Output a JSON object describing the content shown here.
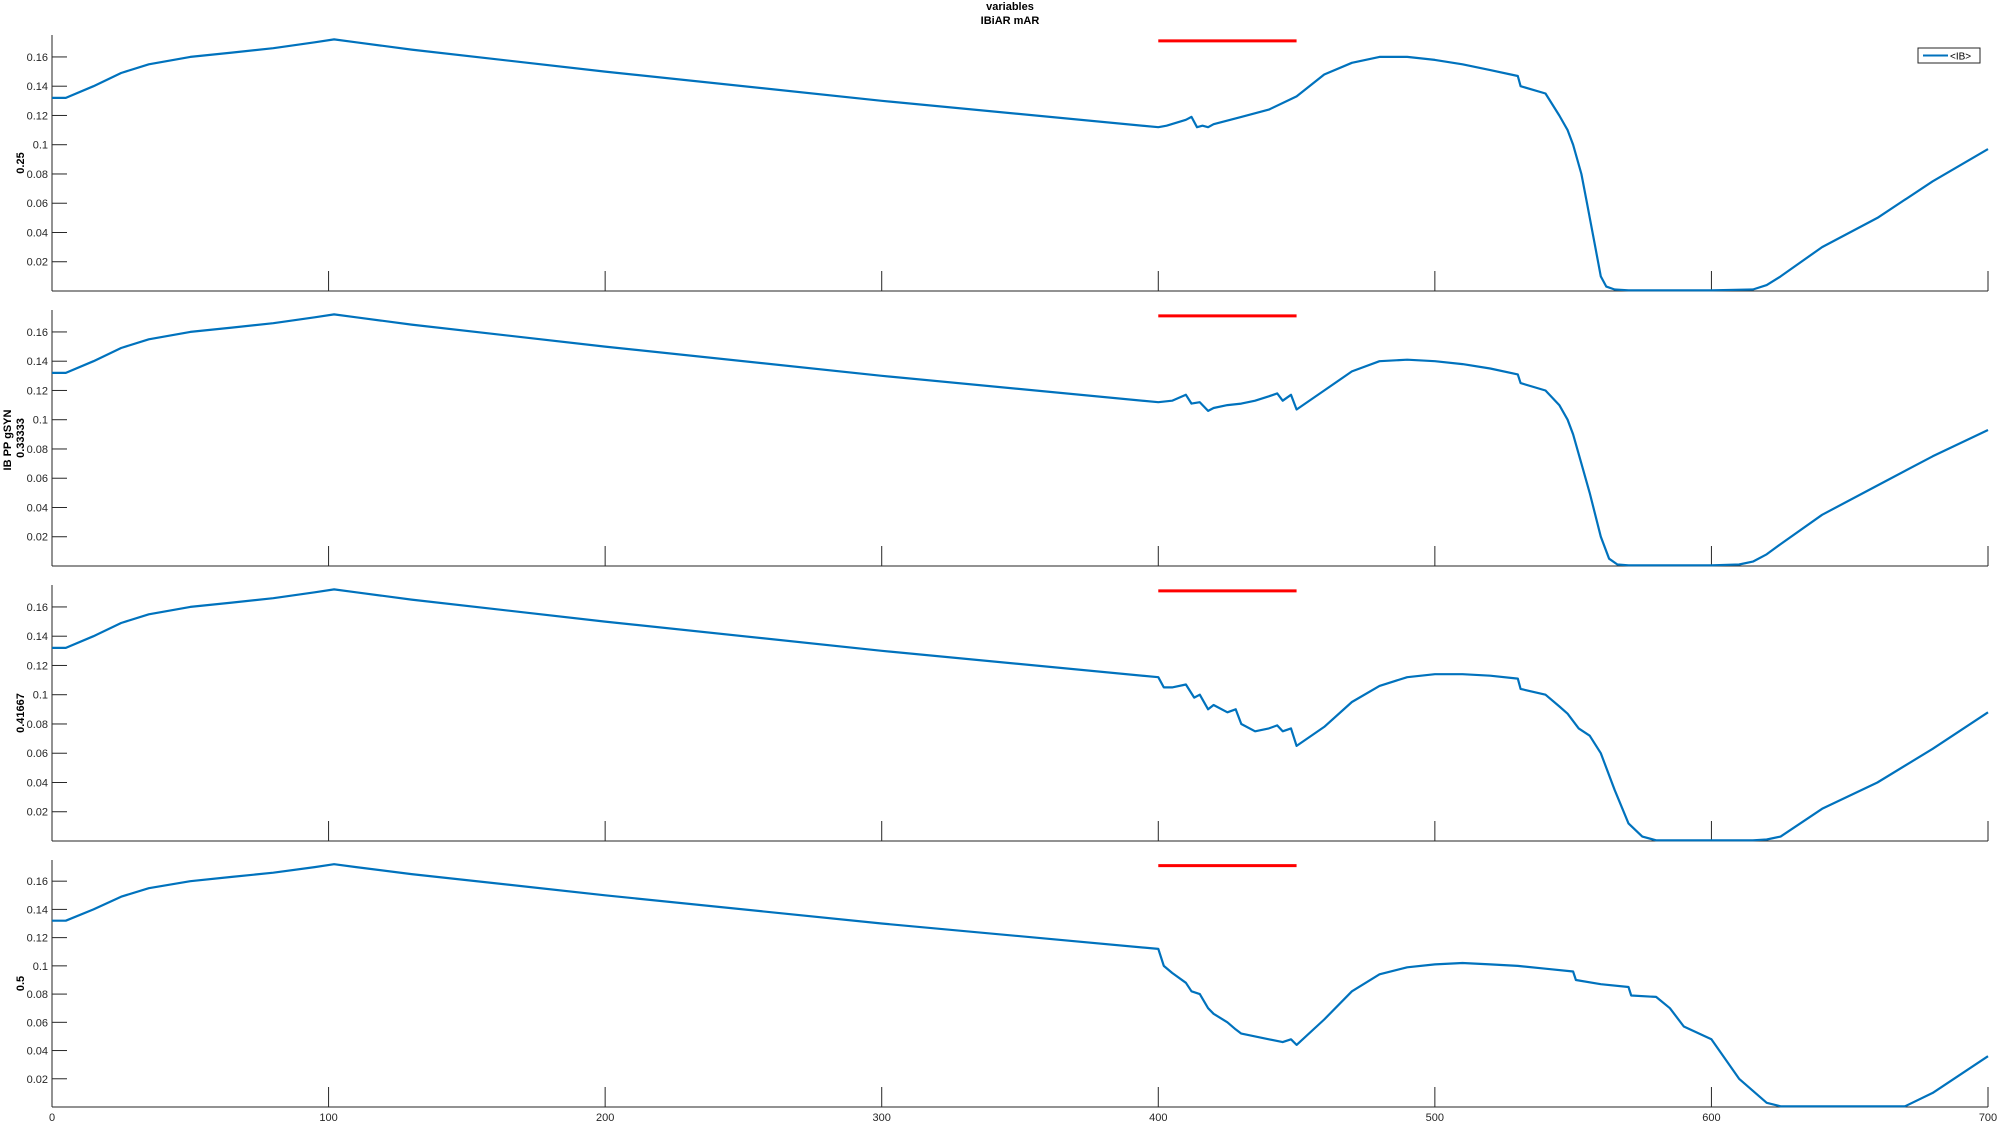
{
  "figure": {
    "title_line1": "variables",
    "title_line2": "IBiAR mAR",
    "group_ylabel": "IB PP gSYN",
    "colors": {
      "series": "#0072BD",
      "stimulus": "#FF0000",
      "axis": "#262626"
    }
  },
  "chart_data": [
    {
      "type": "line",
      "panel_ylabel": "0.25",
      "legend": [
        "<IB>"
      ],
      "legend_position": "top-right",
      "xlim": [
        0,
        700
      ],
      "ylim": [
        0,
        0.175
      ],
      "xticks": [
        100,
        200,
        300,
        400,
        500,
        600,
        700
      ],
      "yticks": [
        0.02,
        0.04,
        0.06,
        0.08,
        0.1,
        0.12,
        0.14,
        0.16
      ],
      "ytick_labels": [
        "0.02",
        "0.04",
        "0.06",
        "0.08",
        "0.1",
        "0.12",
        "0.14",
        "0.16"
      ],
      "xtick_labels": [],
      "stimulus_bar": {
        "x": [
          400,
          450
        ],
        "y": 0.171
      },
      "series": [
        {
          "name": "<IB>",
          "x": [
            0,
            5,
            15,
            25,
            35,
            50,
            65,
            80,
            95,
            102,
            110,
            130,
            200,
            300,
            400,
            403,
            410,
            412,
            414,
            416,
            418,
            420,
            430,
            440,
            450,
            460,
            470,
            480,
            490,
            500,
            510,
            520,
            530,
            531,
            540,
            545,
            548,
            550,
            553,
            555,
            558,
            560,
            562,
            565,
            570,
            580,
            600,
            615,
            620,
            625,
            640,
            660,
            680,
            700
          ],
          "y": [
            0.132,
            0.132,
            0.14,
            0.149,
            0.155,
            0.16,
            0.163,
            0.166,
            0.17,
            0.172,
            0.17,
            0.165,
            0.15,
            0.13,
            0.112,
            0.113,
            0.117,
            0.119,
            0.112,
            0.113,
            0.112,
            0.114,
            0.119,
            0.124,
            0.133,
            0.148,
            0.156,
            0.16,
            0.16,
            0.158,
            0.155,
            0.151,
            0.147,
            0.14,
            0.135,
            0.12,
            0.11,
            0.1,
            0.08,
            0.06,
            0.03,
            0.01,
            0.003,
            0.001,
            0.0005,
            0.0005,
            0.0005,
            0.001,
            0.004,
            0.01,
            0.03,
            0.05,
            0.075,
            0.097
          ]
        }
      ]
    },
    {
      "type": "line",
      "panel_ylabel": "0.33333",
      "legend": [],
      "xlim": [
        0,
        700
      ],
      "ylim": [
        0,
        0.175
      ],
      "xticks": [
        100,
        200,
        300,
        400,
        500,
        600,
        700
      ],
      "yticks": [
        0.02,
        0.04,
        0.06,
        0.08,
        0.1,
        0.12,
        0.14,
        0.16
      ],
      "ytick_labels": [
        "0.02",
        "0.04",
        "0.06",
        "0.08",
        "0.1",
        "0.12",
        "0.14",
        "0.16"
      ],
      "xtick_labels": [],
      "stimulus_bar": {
        "x": [
          400,
          450
        ],
        "y": 0.171
      },
      "series": [
        {
          "name": "",
          "x": [
            0,
            5,
            15,
            25,
            35,
            50,
            65,
            80,
            95,
            102,
            110,
            130,
            200,
            300,
            400,
            405,
            410,
            412,
            415,
            418,
            420,
            425,
            430,
            435,
            440,
            443,
            445,
            448,
            450,
            460,
            470,
            480,
            490,
            500,
            510,
            520,
            530,
            531,
            540,
            545,
            548,
            550,
            553,
            556,
            560,
            563,
            566,
            570,
            580,
            600,
            610,
            615,
            620,
            625,
            640,
            660,
            680,
            700
          ],
          "y": [
            0.132,
            0.132,
            0.14,
            0.149,
            0.155,
            0.16,
            0.163,
            0.166,
            0.17,
            0.172,
            0.17,
            0.165,
            0.15,
            0.13,
            0.112,
            0.113,
            0.117,
            0.111,
            0.112,
            0.106,
            0.108,
            0.11,
            0.111,
            0.113,
            0.116,
            0.118,
            0.113,
            0.117,
            0.107,
            0.12,
            0.133,
            0.14,
            0.141,
            0.14,
            0.138,
            0.135,
            0.131,
            0.125,
            0.12,
            0.11,
            0.1,
            0.09,
            0.07,
            0.05,
            0.02,
            0.005,
            0.001,
            0.0005,
            0.0005,
            0.0005,
            0.001,
            0.003,
            0.008,
            0.015,
            0.035,
            0.055,
            0.075,
            0.093
          ]
        }
      ]
    },
    {
      "type": "line",
      "panel_ylabel": "0.41667",
      "legend": [],
      "xlim": [
        0,
        700
      ],
      "ylim": [
        0,
        0.175
      ],
      "xticks": [
        100,
        200,
        300,
        400,
        500,
        600,
        700
      ],
      "yticks": [
        0.02,
        0.04,
        0.06,
        0.08,
        0.1,
        0.12,
        0.14,
        0.16
      ],
      "ytick_labels": [
        "0.02",
        "0.04",
        "0.06",
        "0.08",
        "0.1",
        "0.12",
        "0.14",
        "0.16"
      ],
      "xtick_labels": [],
      "stimulus_bar": {
        "x": [
          400,
          450
        ],
        "y": 0.171
      },
      "series": [
        {
          "name": "",
          "x": [
            0,
            5,
            15,
            25,
            35,
            50,
            65,
            80,
            95,
            102,
            110,
            130,
            200,
            300,
            400,
            402,
            405,
            410,
            413,
            415,
            418,
            420,
            425,
            428,
            430,
            435,
            440,
            443,
            445,
            448,
            450,
            460,
            470,
            480,
            490,
            500,
            510,
            520,
            530,
            531,
            540,
            545,
            548,
            552,
            556,
            560,
            565,
            570,
            575,
            580,
            600,
            615,
            620,
            625,
            640,
            660,
            680,
            700
          ],
          "y": [
            0.132,
            0.132,
            0.14,
            0.149,
            0.155,
            0.16,
            0.163,
            0.166,
            0.17,
            0.172,
            0.17,
            0.165,
            0.15,
            0.13,
            0.112,
            0.105,
            0.105,
            0.107,
            0.098,
            0.1,
            0.09,
            0.093,
            0.088,
            0.09,
            0.08,
            0.075,
            0.077,
            0.079,
            0.075,
            0.077,
            0.065,
            0.078,
            0.095,
            0.106,
            0.112,
            0.114,
            0.114,
            0.113,
            0.111,
            0.104,
            0.1,
            0.092,
            0.087,
            0.077,
            0.072,
            0.06,
            0.035,
            0.012,
            0.003,
            0.0005,
            0.0005,
            0.0005,
            0.001,
            0.003,
            0.022,
            0.04,
            0.063,
            0.088
          ]
        }
      ]
    },
    {
      "type": "line",
      "panel_ylabel": "0.5",
      "legend": [],
      "xlim": [
        0,
        700
      ],
      "ylim": [
        0,
        0.175
      ],
      "xticks": [
        0,
        100,
        200,
        300,
        400,
        500,
        600,
        700
      ],
      "yticks": [
        0.02,
        0.04,
        0.06,
        0.08,
        0.1,
        0.12,
        0.14,
        0.16
      ],
      "ytick_labels": [
        "0.02",
        "0.04",
        "0.06",
        "0.08",
        "0.1",
        "0.12",
        "0.14",
        "0.16"
      ],
      "xtick_labels": [
        "0",
        "100",
        "200",
        "300",
        "400",
        "500",
        "600",
        "700"
      ],
      "stimulus_bar": {
        "x": [
          400,
          450
        ],
        "y": 0.171
      },
      "series": [
        {
          "name": "",
          "x": [
            0,
            5,
            15,
            25,
            35,
            50,
            65,
            80,
            95,
            102,
            110,
            130,
            200,
            300,
            400,
            402,
            405,
            410,
            412,
            415,
            418,
            420,
            425,
            428,
            430,
            435,
            440,
            445,
            448,
            450,
            460,
            470,
            480,
            490,
            500,
            510,
            520,
            530,
            540,
            550,
            551,
            560,
            570,
            571,
            580,
            585,
            590,
            600,
            610,
            620,
            625,
            630,
            640,
            660,
            670,
            680,
            700
          ],
          "y": [
            0.132,
            0.132,
            0.14,
            0.149,
            0.155,
            0.16,
            0.163,
            0.166,
            0.17,
            0.172,
            0.17,
            0.165,
            0.15,
            0.13,
            0.112,
            0.1,
            0.095,
            0.088,
            0.082,
            0.08,
            0.07,
            0.066,
            0.06,
            0.055,
            0.052,
            0.05,
            0.048,
            0.046,
            0.048,
            0.044,
            0.062,
            0.082,
            0.094,
            0.099,
            0.101,
            0.102,
            0.101,
            0.1,
            0.098,
            0.096,
            0.09,
            0.087,
            0.085,
            0.079,
            0.078,
            0.07,
            0.057,
            0.048,
            0.02,
            0.003,
            0.0005,
            0.0005,
            0.0005,
            0.0005,
            0.0005,
            0.01,
            0.036
          ]
        }
      ]
    }
  ]
}
